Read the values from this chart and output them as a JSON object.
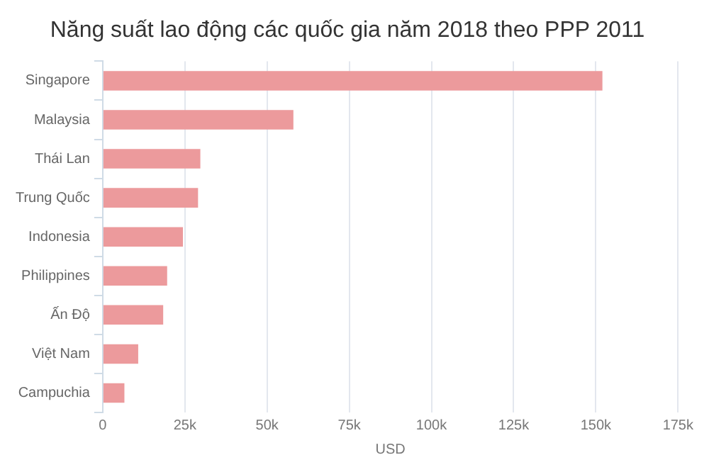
{
  "chart_data": {
    "type": "bar",
    "orientation": "horizontal",
    "title": "Năng suất lao động các quốc gia năm 2018 theo PPP 2011",
    "xlabel": "USD",
    "categories": [
      "Singapore",
      "Malaysia",
      "Thái Lan",
      "Trung Quốc",
      "Indonesia",
      "Philippines",
      "Ấn Độ",
      "Việt Nam",
      "Campuchia"
    ],
    "values": [
      152000,
      58000,
      29700,
      29000,
      24400,
      19600,
      18400,
      10800,
      6600
    ],
    "color": "#ec9a9c",
    "xlim": [
      0,
      175000
    ],
    "xticks": [
      {
        "value": 0,
        "label": "0"
      },
      {
        "value": 25000,
        "label": "25k"
      },
      {
        "value": 50000,
        "label": "50k"
      },
      {
        "value": 75000,
        "label": "75k"
      },
      {
        "value": 100000,
        "label": "100k"
      },
      {
        "value": 125000,
        "label": "125k"
      },
      {
        "value": 150000,
        "label": "150k"
      },
      {
        "value": 175000,
        "label": "175k"
      }
    ],
    "grid": "x"
  }
}
